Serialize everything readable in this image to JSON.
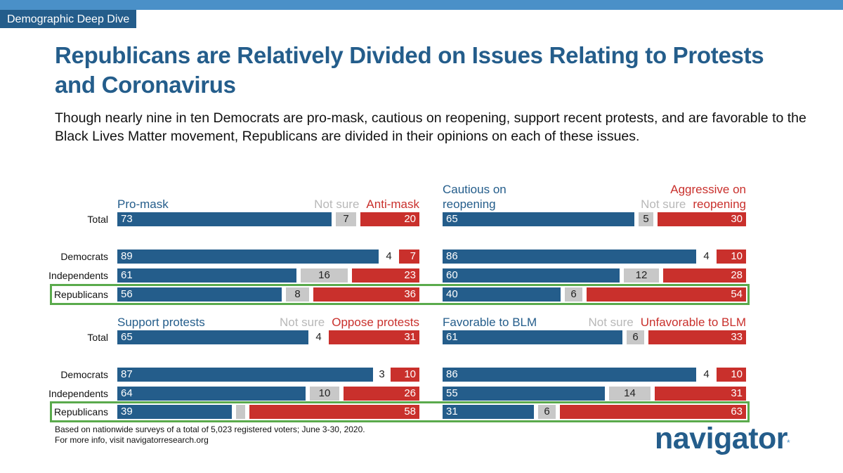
{
  "header": {
    "tag": "Demographic Deep Dive"
  },
  "title": "Republicans are Relatively Divided on Issues Relating to Protests and Coronavirus",
  "subtitle": "Though nearly nine in ten Democrats are pro-mask, cautious on reopening, support recent protests, and are favorable to the Black Lives Matter movement, Republicans are divided in their opinions on each of these issues.",
  "colors": {
    "positive": "#245d8b",
    "not_sure": "#c8c8c8",
    "negative": "#c9302c",
    "highlight": "#5aaa4c"
  },
  "chart_data": {
    "type": "bar",
    "stacked": true,
    "orientation": "horizontal",
    "unit": "percent",
    "rows": [
      "Total",
      "Democrats",
      "Independents",
      "Republicans"
    ],
    "highlighted_row": "Republicans",
    "panels": [
      {
        "pos_label": "Pro-mask",
        "ns_label": "Not sure",
        "neg_label": "Anti-mask",
        "series": [
          {
            "name": "Pro-mask",
            "values": [
              73,
              89,
              61,
              56
            ]
          },
          {
            "name": "Not sure",
            "values": [
              7,
              4,
              16,
              8
            ]
          },
          {
            "name": "Anti-mask",
            "values": [
              20,
              7,
              23,
              36
            ]
          }
        ]
      },
      {
        "pos_label": "Cautious on\nreopening",
        "ns_label": "Not sure",
        "neg_label": "Aggressive on\nreopening",
        "series": [
          {
            "name": "Cautious on reopening",
            "values": [
              65,
              86,
              60,
              40
            ]
          },
          {
            "name": "Not sure",
            "values": [
              5,
              4,
              12,
              6
            ]
          },
          {
            "name": "Aggressive on reopening",
            "values": [
              30,
              10,
              28,
              54
            ]
          }
        ]
      },
      {
        "pos_label": "Support protests",
        "ns_label": "Not sure",
        "neg_label": "Oppose protests",
        "series": [
          {
            "name": "Support protests",
            "values": [
              65,
              87,
              64,
              39
            ]
          },
          {
            "name": "Not sure",
            "values": [
              4,
              3,
              10,
              null
            ]
          },
          {
            "name": "Oppose protests",
            "values": [
              31,
              10,
              26,
              58
            ]
          }
        ]
      },
      {
        "pos_label": "Favorable to BLM",
        "ns_label": "Not sure",
        "neg_label": "Unfavorable to BLM",
        "series": [
          {
            "name": "Favorable to BLM",
            "values": [
              61,
              86,
              55,
              31
            ]
          },
          {
            "name": "Not sure",
            "values": [
              6,
              4,
              14,
              6
            ]
          },
          {
            "name": "Unfavorable to BLM",
            "values": [
              33,
              10,
              31,
              63
            ]
          }
        ]
      }
    ]
  },
  "footnote": {
    "line1": "Based on nationwide surveys of a total of 5,023 registered voters; June 3-30, 2020.",
    "line2": "For more info, visit navigatorresearch.org"
  },
  "logo": {
    "text": "navigator",
    "mark": "*"
  }
}
